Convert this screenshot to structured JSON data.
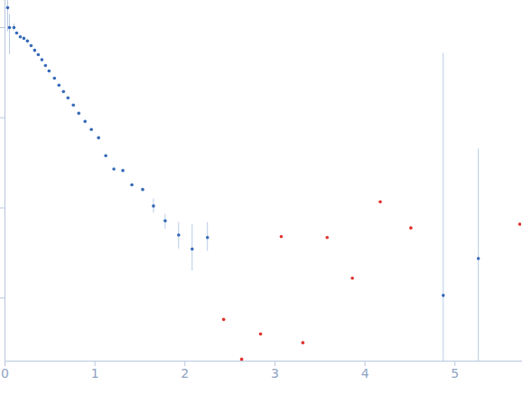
{
  "chart_data": {
    "type": "scatter",
    "log": "y",
    "grid": false,
    "tick_labels": "x",
    "xlim": [
      0,
      5.74
    ],
    "xticks": [
      0,
      1,
      2,
      3,
      4,
      5
    ],
    "ylim": [
      0.0002,
      2
    ],
    "yticks": [
      1,
      0.1,
      0.01,
      0.001
    ],
    "series": [
      {
        "color": "#3569b8",
        "marker": "circle",
        "x": [
          0.03,
          0.05,
          0.1,
          0.13,
          0.17,
          0.21,
          0.25,
          0.29,
          0.33,
          0.37,
          0.41,
          0.45,
          0.49,
          0.55,
          0.6,
          0.65,
          0.7,
          0.76,
          0.82,
          0.89,
          0.96,
          1.04,
          1.12,
          1.21,
          1.31,
          1.41,
          1.53,
          1.65,
          1.78,
          1.93,
          2.08,
          2.25,
          4.87,
          5.26
        ],
        "values": [
          1.66,
          1,
          1,
          0.87,
          0.79,
          0.76,
          0.71,
          0.63,
          0.56,
          0.5,
          0.44,
          0.38,
          0.33,
          0.275,
          0.23,
          0.195,
          0.166,
          0.138,
          0.112,
          0.091,
          0.074,
          0.06,
          0.038,
          0.027,
          0.026,
          0.018,
          0.016,
          0.0105,
          0.0072,
          0.005,
          0.0035,
          0.0047,
          0.00107,
          0.00275
        ],
        "error_low": [
          0.9,
          0.5,
          0.92,
          null,
          null,
          null,
          null,
          null,
          null,
          null,
          null,
          null,
          null,
          null,
          null,
          null,
          null,
          null,
          null,
          null,
          null,
          null,
          null,
          null,
          null,
          null,
          null,
          0.0087,
          0.0058,
          0.0035,
          0.002,
          0.0033,
          0.0002,
          0.0002
        ],
        "error_high": [
          2,
          1.4,
          1.1,
          null,
          null,
          null,
          null,
          null,
          null,
          null,
          null,
          null,
          null,
          null,
          null,
          null,
          null,
          null,
          null,
          null,
          null,
          null,
          null,
          null,
          null,
          null,
          null,
          0.0126,
          0.0085,
          0.0069,
          0.0066,
          0.0069,
          0.52,
          0.045
        ]
      },
      {
        "color": "#e0302a",
        "marker": "circle",
        "x": [
          2.43,
          2.63,
          2.84,
          3.07,
          3.31,
          3.58,
          3.86,
          4.17,
          4.51,
          5.72
        ],
        "values": [
          0.00058,
          0.00021,
          0.0004,
          0.0048,
          0.00032,
          0.0047,
          0.00166,
          0.0117,
          0.006,
          0.0066
        ]
      }
    ]
  }
}
